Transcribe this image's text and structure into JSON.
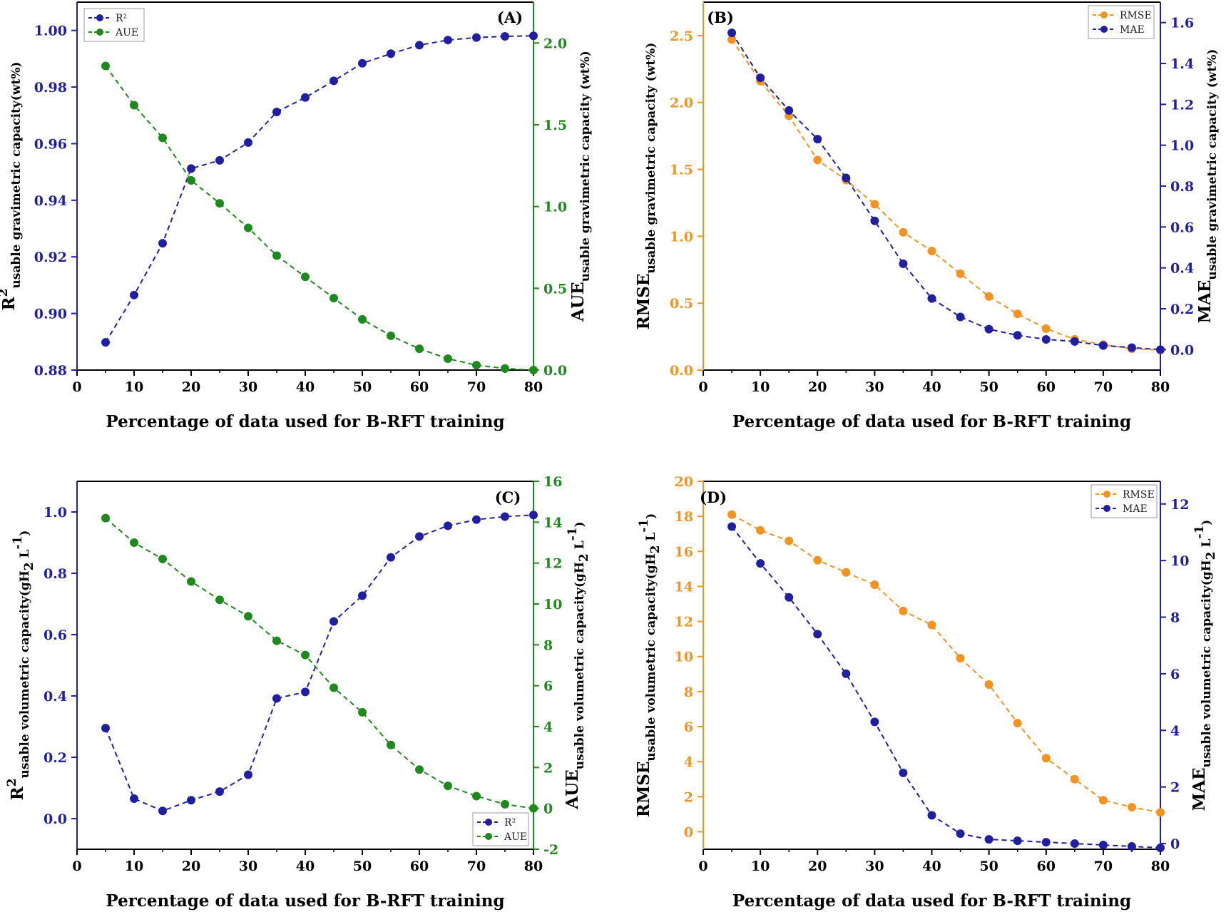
{
  "colors": {
    "navy": "#1f1fa0",
    "green": "#1e8a1e",
    "orange": "#f39322",
    "axis": "#000000"
  },
  "chart_data": [
    {
      "id": "A",
      "type": "line",
      "panel_label": "(A)",
      "xlabel": "Percentage of data used for B-RFT training",
      "x": [
        5,
        10,
        15,
        20,
        25,
        30,
        35,
        40,
        45,
        50,
        55,
        60,
        65,
        70,
        75,
        80
      ],
      "xlim": [
        0,
        80
      ],
      "xticks": [
        0,
        10,
        20,
        30,
        40,
        50,
        60,
        70,
        80
      ],
      "left_axis": {
        "label_main": "R",
        "label_sup": "2",
        "label_sub": "usable gravimetric capacity(wt%)",
        "lim": [
          0.88,
          1.01
        ],
        "ticks": [
          0.88,
          0.9,
          0.92,
          0.94,
          0.96,
          0.98,
          1.0
        ],
        "decimals": 2,
        "color": "#1f1fa0"
      },
      "right_axis": {
        "label_main": "AUE",
        "label_sub": "usable gravimetric capacity (wt%)",
        "lim": [
          0.0,
          2.25
        ],
        "ticks": [
          0.0,
          0.5,
          1.0,
          1.5,
          2.0
        ],
        "decimals": 1,
        "color": "#1e8a1e"
      },
      "legend": {
        "position": "top-left",
        "entries": [
          "R²",
          "AUE"
        ]
      },
      "series": [
        {
          "name": "R²",
          "axis": "left",
          "color": "#1f1fa0",
          "values": [
            0.8898,
            0.9065,
            0.9248,
            0.9512,
            0.9541,
            0.9604,
            0.9712,
            0.9763,
            0.9822,
            0.9884,
            0.9918,
            0.9948,
            0.9966,
            0.9975,
            0.9979,
            0.9981
          ]
        },
        {
          "name": "AUE",
          "axis": "right",
          "color": "#1e8a1e",
          "values": [
            1.86,
            1.62,
            1.42,
            1.16,
            1.02,
            0.87,
            0.7,
            0.57,
            0.44,
            0.31,
            0.21,
            0.13,
            0.07,
            0.03,
            0.01,
            0.0
          ]
        }
      ]
    },
    {
      "id": "B",
      "type": "line",
      "panel_label": "(B)",
      "xlabel": "Percentage of data used for B-RFT training",
      "x": [
        5,
        10,
        15,
        20,
        25,
        30,
        35,
        40,
        45,
        50,
        55,
        60,
        65,
        70,
        75,
        80
      ],
      "xlim": [
        0,
        80
      ],
      "xticks": [
        0,
        10,
        20,
        30,
        40,
        50,
        60,
        70,
        80
      ],
      "left_axis": {
        "label_main": "RMSE",
        "label_sub": "usable gravimetric capacity (wt%)",
        "lim": [
          0,
          2.75
        ],
        "ticks": [
          0.0,
          0.5,
          1.0,
          1.5,
          2.0,
          2.5
        ],
        "decimals": 1,
        "color": "#f39322"
      },
      "right_axis": {
        "label_main": "MAE",
        "label_sub": "usable gravimetric capacity (wt%)",
        "lim": [
          -0.1,
          1.7
        ],
        "ticks": [
          0.0,
          0.2,
          0.4,
          0.6,
          0.8,
          1.0,
          1.2,
          1.4,
          1.6
        ],
        "decimals": 1,
        "color": "#1f1fa0"
      },
      "legend": {
        "position": "top-right",
        "entries": [
          "RMSE",
          "MAE"
        ]
      },
      "series": [
        {
          "name": "RMSE",
          "axis": "left",
          "color": "#f39322",
          "values": [
            2.47,
            2.16,
            1.9,
            1.57,
            1.42,
            1.24,
            1.03,
            0.89,
            0.72,
            0.55,
            0.42,
            0.31,
            0.23,
            0.19,
            0.16,
            0.15
          ]
        },
        {
          "name": "MAE",
          "axis": "right",
          "color": "#1f1fa0",
          "values": [
            1.55,
            1.33,
            1.17,
            1.03,
            0.84,
            0.63,
            0.42,
            0.25,
            0.16,
            0.1,
            0.07,
            0.05,
            0.04,
            0.02,
            0.01,
            0.0
          ]
        }
      ]
    },
    {
      "id": "C",
      "type": "line",
      "panel_label": "(C)",
      "xlabel": "Percentage of data used for B-RFT  training",
      "x": [
        5,
        10,
        15,
        20,
        25,
        30,
        35,
        40,
        45,
        50,
        55,
        60,
        65,
        70,
        75,
        80
      ],
      "xlim": [
        0,
        80
      ],
      "xticks": [
        0,
        10,
        20,
        30,
        40,
        50,
        60,
        70,
        80
      ],
      "left_axis": {
        "label_main": "R",
        "label_sup": "2",
        "label_sub": "usable volumetric capacity(gH",
        "label_sub2": "2",
        "label_tail": " L",
        "label_tail_sup": "-1",
        "label_close": ")",
        "lim": [
          -0.1,
          1.1
        ],
        "ticks": [
          0.0,
          0.2,
          0.4,
          0.6,
          0.8,
          1.0
        ],
        "decimals": 1,
        "color": "#1f1fa0"
      },
      "right_axis": {
        "label_main": "AUE",
        "label_sub": "usable volumetric capacity(gH",
        "label_sub2": "2",
        "label_tail": " L",
        "label_tail_sup": "-1",
        "label_close": ")",
        "lim": [
          -2,
          16
        ],
        "ticks": [
          -2,
          0,
          2,
          4,
          6,
          8,
          10,
          12,
          14,
          16
        ],
        "decimals": 0,
        "color": "#1e8a1e"
      },
      "legend": {
        "position": "bottom-right",
        "entries": [
          "R²",
          "AUE"
        ]
      },
      "series": [
        {
          "name": "R²",
          "axis": "left",
          "color": "#1f1fa0",
          "values": [
            0.295,
            0.065,
            0.025,
            0.06,
            0.088,
            0.143,
            0.392,
            0.413,
            0.643,
            0.727,
            0.852,
            0.92,
            0.955,
            0.975,
            0.985,
            0.99
          ]
        },
        {
          "name": "AUE",
          "axis": "right",
          "color": "#1e8a1e",
          "values": [
            14.2,
            13.0,
            12.2,
            11.1,
            10.2,
            9.4,
            8.2,
            7.5,
            5.9,
            4.7,
            3.1,
            1.9,
            1.1,
            0.6,
            0.2,
            0.0
          ]
        }
      ]
    },
    {
      "id": "D",
      "type": "line",
      "panel_label": "(D)",
      "xlabel": "Percentage of data used for B-RFT training",
      "x": [
        5,
        10,
        15,
        20,
        25,
        30,
        35,
        40,
        45,
        50,
        55,
        60,
        65,
        70,
        75,
        80
      ],
      "xlim": [
        0,
        80
      ],
      "xticks": [
        0,
        10,
        20,
        30,
        40,
        50,
        60,
        70,
        80
      ],
      "left_axis": {
        "label_main": "RMSE",
        "label_sub": "usable volumetric capacity(gH",
        "label_sub2": "2",
        "label_tail": " L",
        "label_tail_sup": "-1",
        "label_close": ")",
        "lim": [
          -1,
          20
        ],
        "ticks": [
          0,
          2,
          4,
          6,
          8,
          10,
          12,
          14,
          16,
          18,
          20
        ],
        "decimals": 0,
        "color": "#f39322"
      },
      "right_axis": {
        "label_main": "MAE",
        "label_sub": "usable volumetric capacity(gH",
        "label_sub2": "2",
        "label_tail": " L",
        "label_tail_sup": "-1",
        "label_close": ")",
        "lim": [
          -0.2,
          12.8
        ],
        "ticks": [
          0,
          2,
          4,
          6,
          8,
          10,
          12
        ],
        "decimals": 0,
        "color": "#1f1fa0"
      },
      "legend": {
        "position": "top-right",
        "entries": [
          "RMSE",
          "MAE"
        ]
      },
      "series": [
        {
          "name": "RMSE",
          "axis": "left",
          "color": "#f39322",
          "values": [
            18.1,
            17.2,
            16.6,
            15.5,
            14.8,
            14.1,
            12.6,
            11.8,
            9.9,
            8.4,
            6.2,
            4.2,
            3.0,
            1.8,
            1.4,
            1.1
          ]
        },
        {
          "name": "MAE",
          "axis": "right",
          "color": "#1f1fa0",
          "values": [
            11.2,
            9.9,
            8.7,
            7.4,
            6.0,
            4.3,
            2.5,
            1.0,
            0.35,
            0.15,
            0.1,
            0.05,
            0.0,
            -0.05,
            -0.1,
            -0.15
          ]
        }
      ]
    }
  ]
}
